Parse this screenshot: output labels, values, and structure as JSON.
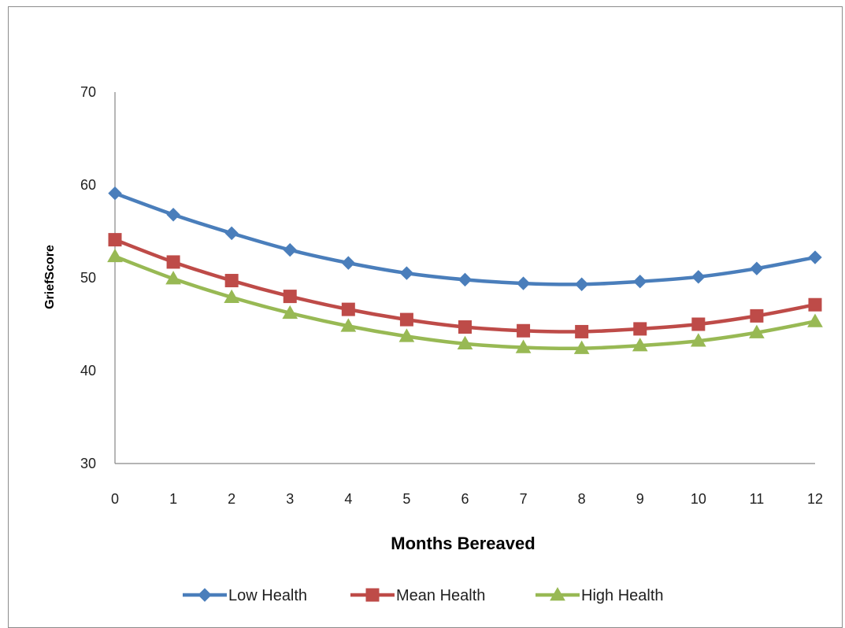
{
  "chart_data": {
    "type": "line",
    "title": "",
    "xlabel": "Months Bereaved",
    "ylabel": "GriefScore",
    "x": [
      0,
      1,
      2,
      3,
      4,
      5,
      6,
      7,
      8,
      9,
      10,
      11,
      12
    ],
    "xticks": [
      "0",
      "1",
      "2",
      "3",
      "4",
      "5",
      "6",
      "7",
      "8",
      "9",
      "10",
      "11",
      "12"
    ],
    "yticks": [
      "30",
      "40",
      "50",
      "60",
      "70"
    ],
    "ylim": [
      30,
      70
    ],
    "xlim": [
      0,
      12
    ],
    "grid": false,
    "legend_position": "bottom",
    "series": [
      {
        "name": "Low Health",
        "color": "#4a7ebb",
        "marker": "diamond",
        "values": [
          59.1,
          56.8,
          54.8,
          53.0,
          51.6,
          50.5,
          49.8,
          49.4,
          49.3,
          49.6,
          50.1,
          51.0,
          52.2
        ]
      },
      {
        "name": "Mean Health",
        "color": "#be4b48",
        "marker": "square",
        "values": [
          54.1,
          51.7,
          49.7,
          48.0,
          46.6,
          45.5,
          44.7,
          44.3,
          44.2,
          44.5,
          45.0,
          45.9,
          47.1
        ]
      },
      {
        "name": "High Health",
        "color": "#98b954",
        "marker": "triangle",
        "values": [
          52.3,
          49.9,
          47.9,
          46.2,
          44.8,
          43.7,
          42.9,
          42.5,
          42.4,
          42.7,
          43.2,
          44.1,
          45.3
        ]
      }
    ]
  }
}
